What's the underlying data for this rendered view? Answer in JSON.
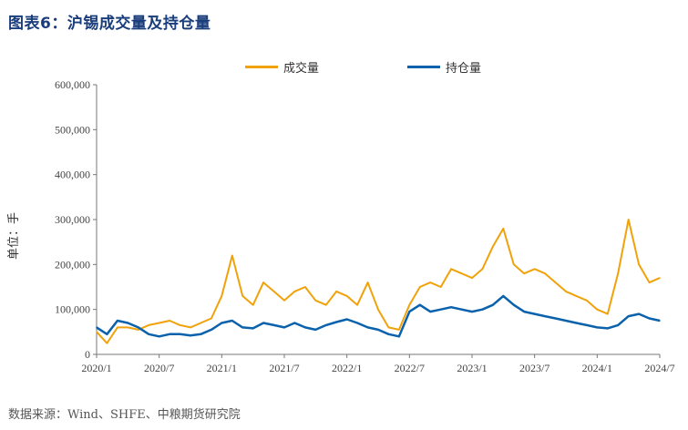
{
  "header": {
    "title": "图表6：沪锡成交量及持仓量"
  },
  "footer": {
    "source": "数据来源：Wind、SHFE、中粮期货研究院"
  },
  "colors": {
    "volume": "#f0a20a",
    "open_interest": "#0b62ac",
    "title": "#1a3d7c"
  },
  "chart_data": {
    "type": "line",
    "title": "图表6：沪锡成交量及持仓量",
    "xlabel": "",
    "ylabel": "单位：手",
    "ylim": [
      0,
      600000
    ],
    "y_ticks": [
      "0",
      "100,000",
      "200,000",
      "300,000",
      "400,000",
      "500,000",
      "600,000"
    ],
    "x_ticks": [
      "2020/1",
      "2020/7",
      "2021/1",
      "2021/7",
      "2022/1",
      "2022/7",
      "2023/1",
      "2023/7",
      "2024/1",
      "2024/7"
    ],
    "legend_position": "top",
    "series": [
      {
        "name": "成交量",
        "points": [
          [
            "2020/01",
            50000
          ],
          [
            "2020/02",
            25000
          ],
          [
            "2020/03",
            60000
          ],
          [
            "2020/04",
            60000
          ],
          [
            "2020/05",
            55000
          ],
          [
            "2020/06",
            65000
          ],
          [
            "2020/07",
            70000
          ],
          [
            "2020/08",
            75000
          ],
          [
            "2020/09",
            65000
          ],
          [
            "2020/10",
            60000
          ],
          [
            "2020/11",
            70000
          ],
          [
            "2020/12",
            80000
          ],
          [
            "2021/01",
            130000
          ],
          [
            "2021/02",
            220000
          ],
          [
            "2021/03",
            130000
          ],
          [
            "2021/04",
            110000
          ],
          [
            "2021/05",
            160000
          ],
          [
            "2021/06",
            140000
          ],
          [
            "2021/07",
            120000
          ],
          [
            "2021/08",
            140000
          ],
          [
            "2021/09",
            150000
          ],
          [
            "2021/10",
            120000
          ],
          [
            "2021/11",
            110000
          ],
          [
            "2021/12",
            140000
          ],
          [
            "2022/01",
            130000
          ],
          [
            "2022/02",
            110000
          ],
          [
            "2022/03",
            160000
          ],
          [
            "2022/04",
            100000
          ],
          [
            "2022/05",
            60000
          ],
          [
            "2022/06",
            55000
          ],
          [
            "2022/07",
            110000
          ],
          [
            "2022/08",
            150000
          ],
          [
            "2022/09",
            160000
          ],
          [
            "2022/10",
            150000
          ],
          [
            "2022/11",
            190000
          ],
          [
            "2022/12",
            180000
          ],
          [
            "2023/01",
            170000
          ],
          [
            "2023/02",
            190000
          ],
          [
            "2023/03",
            240000
          ],
          [
            "2023/04",
            280000
          ],
          [
            "2023/05",
            200000
          ],
          [
            "2023/06",
            180000
          ],
          [
            "2023/07",
            190000
          ],
          [
            "2023/08",
            180000
          ],
          [
            "2023/09",
            160000
          ],
          [
            "2023/10",
            140000
          ],
          [
            "2023/11",
            130000
          ],
          [
            "2023/12",
            120000
          ],
          [
            "2024/01",
            100000
          ],
          [
            "2024/02",
            90000
          ],
          [
            "2024/03",
            180000
          ],
          [
            "2024/04",
            300000
          ],
          [
            "2024/05",
            200000
          ],
          [
            "2024/06",
            160000
          ],
          [
            "2024/07",
            170000
          ]
        ]
      },
      {
        "name": "持仓量",
        "points": [
          [
            "2020/01",
            60000
          ],
          [
            "2020/02",
            45000
          ],
          [
            "2020/03",
            75000
          ],
          [
            "2020/04",
            70000
          ],
          [
            "2020/05",
            60000
          ],
          [
            "2020/06",
            45000
          ],
          [
            "2020/07",
            40000
          ],
          [
            "2020/08",
            45000
          ],
          [
            "2020/09",
            45000
          ],
          [
            "2020/10",
            42000
          ],
          [
            "2020/11",
            45000
          ],
          [
            "2020/12",
            55000
          ],
          [
            "2021/01",
            70000
          ],
          [
            "2021/02",
            75000
          ],
          [
            "2021/03",
            60000
          ],
          [
            "2021/04",
            58000
          ],
          [
            "2021/05",
            70000
          ],
          [
            "2021/06",
            65000
          ],
          [
            "2021/07",
            60000
          ],
          [
            "2021/08",
            70000
          ],
          [
            "2021/09",
            60000
          ],
          [
            "2021/10",
            55000
          ],
          [
            "2021/11",
            65000
          ],
          [
            "2021/12",
            72000
          ],
          [
            "2022/01",
            78000
          ],
          [
            "2022/02",
            70000
          ],
          [
            "2022/03",
            60000
          ],
          [
            "2022/04",
            55000
          ],
          [
            "2022/05",
            45000
          ],
          [
            "2022/06",
            40000
          ],
          [
            "2022/07",
            95000
          ],
          [
            "2022/08",
            110000
          ],
          [
            "2022/09",
            95000
          ],
          [
            "2022/10",
            100000
          ],
          [
            "2022/11",
            105000
          ],
          [
            "2022/12",
            100000
          ],
          [
            "2023/01",
            95000
          ],
          [
            "2023/02",
            100000
          ],
          [
            "2023/03",
            110000
          ],
          [
            "2023/04",
            130000
          ],
          [
            "2023/05",
            110000
          ],
          [
            "2023/06",
            95000
          ],
          [
            "2023/07",
            90000
          ],
          [
            "2023/08",
            85000
          ],
          [
            "2023/09",
            80000
          ],
          [
            "2023/10",
            75000
          ],
          [
            "2023/11",
            70000
          ],
          [
            "2023/12",
            65000
          ],
          [
            "2024/01",
            60000
          ],
          [
            "2024/02",
            58000
          ],
          [
            "2024/03",
            65000
          ],
          [
            "2024/04",
            85000
          ],
          [
            "2024/05",
            90000
          ],
          [
            "2024/06",
            80000
          ],
          [
            "2024/07",
            75000
          ]
        ]
      }
    ]
  }
}
